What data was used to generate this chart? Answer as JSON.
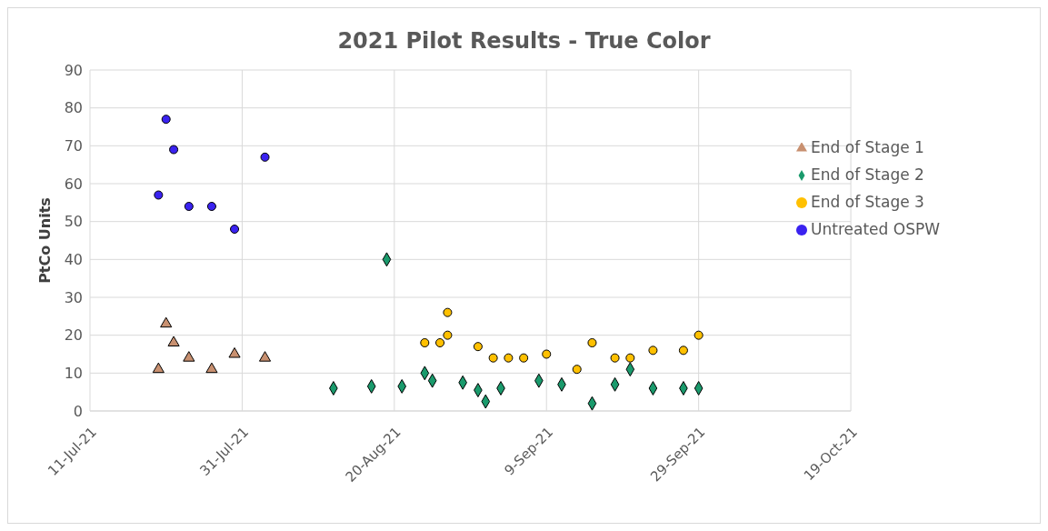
{
  "chart_data": {
    "type": "scatter",
    "title": "2021 Pilot Results - True Color",
    "ylabel": "PtCo Units",
    "xlim": [
      "2021-07-11",
      "2021-10-19"
    ],
    "xticks": [
      {
        "value": "2021-07-11",
        "label": "11-Jul-21"
      },
      {
        "value": "2021-07-31",
        "label": "31-Jul-21"
      },
      {
        "value": "2021-08-20",
        "label": "20-Aug-21"
      },
      {
        "value": "2021-09-09",
        "label": "9-Sep-21"
      },
      {
        "value": "2021-09-29",
        "label": "29-Sep-21"
      },
      {
        "value": "2021-10-19",
        "label": "19-Oct-21"
      }
    ],
    "ylim": [
      0,
      90
    ],
    "yticks": [
      0,
      10,
      20,
      30,
      40,
      50,
      60,
      70,
      80,
      90
    ],
    "grid": true,
    "legend": "top right",
    "series": [
      {
        "name": "Untreated OSPW",
        "color": "#3a22f0",
        "marker": "circle",
        "x": [
          "2021-07-20",
          "2021-07-21",
          "2021-07-22",
          "2021-07-24",
          "2021-07-27",
          "2021-07-30",
          "2021-08-03"
        ],
        "values": [
          57,
          77,
          69,
          54,
          54,
          48,
          67
        ]
      },
      {
        "name": "End of Stage 1",
        "color": "#c89070",
        "marker": "triangle",
        "x": [
          "2021-07-20",
          "2021-07-21",
          "2021-07-22",
          "2021-07-24",
          "2021-07-27",
          "2021-07-30",
          "2021-08-03"
        ],
        "values": [
          11,
          23,
          18,
          14,
          11,
          15,
          14
        ]
      },
      {
        "name": "End of Stage 2",
        "color": "#1a9a6c",
        "marker": "diamond",
        "x": [
          "2021-08-12",
          "2021-08-17",
          "2021-08-19",
          "2021-08-21",
          "2021-08-24",
          "2021-08-25",
          "2021-08-29",
          "2021-08-31",
          "2021-09-01",
          "2021-09-03",
          "2021-09-08",
          "2021-09-11",
          "2021-09-15",
          "2021-09-18",
          "2021-09-20",
          "2021-09-23",
          "2021-09-27",
          "2021-09-29"
        ],
        "values": [
          6,
          6.5,
          40,
          6.5,
          10,
          8,
          7.5,
          5.5,
          2.5,
          6,
          8,
          7,
          2,
          7,
          11,
          6,
          6,
          6
        ]
      },
      {
        "name": "End of Stage 3",
        "color": "#ffc000",
        "marker": "circle",
        "x": [
          "2021-08-24",
          "2021-08-26",
          "2021-08-27",
          "2021-08-27",
          "2021-08-31",
          "2021-09-02",
          "2021-09-04",
          "2021-09-06",
          "2021-09-09",
          "2021-09-13",
          "2021-09-15",
          "2021-09-18",
          "2021-09-20",
          "2021-09-23",
          "2021-09-27",
          "2021-09-29"
        ],
        "values": [
          18,
          18,
          20,
          26,
          17,
          14,
          14,
          14,
          15,
          11,
          18,
          14,
          14,
          16,
          16,
          20
        ]
      }
    ]
  }
}
